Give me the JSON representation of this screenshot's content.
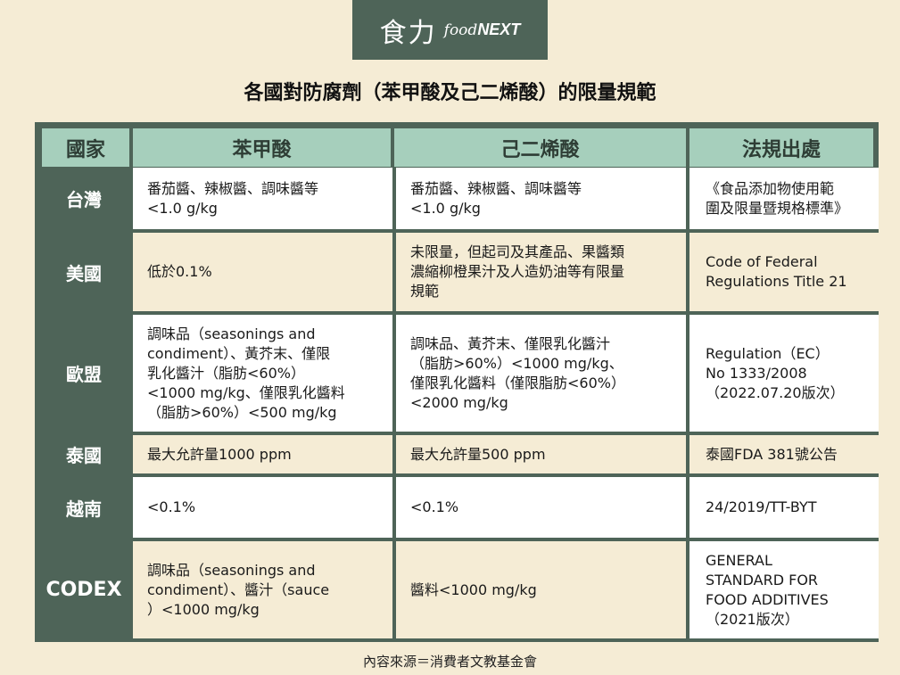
{
  "logo": {
    "zh": "食力",
    "en_prefix": "food",
    "en_suffix": "NEXT"
  },
  "title": "各國對防腐劑（苯甲酸及己二烯酸）的限量規範",
  "headers": {
    "country": "國家",
    "benzoic": "苯甲酸",
    "sorbic": "己二烯酸",
    "law": "法規出處"
  },
  "rows": [
    {
      "country": "台灣",
      "benzoic": "番茄醬、辣椒醬、調味醬等\n<1.0 g/kg",
      "sorbic": "番茄醬、辣椒醬、調味醬等\n<1.0 g/kg",
      "law": "《食品添加物使用範\n圍及限量暨規格標準》"
    },
    {
      "country": "美國",
      "benzoic": "低於0.1%",
      "sorbic": "未限量，但起司及其產品、果醬類\n濃縮柳橙果汁及人造奶油等有限量\n規範",
      "law": "Code of Federal\nRegulations Title 21"
    },
    {
      "country": "歐盟",
      "benzoic": "調味品（seasonings and\ncondiment）、黃芥末、僅限\n乳化醬汁（脂肪<60%）\n<1000 mg/kg、僅限乳化醬料\n（脂肪>60%）<500 mg/kg",
      "sorbic": "調味品、黃芥末、僅限乳化醬汁\n（脂肪>60%）<1000 mg/kg、\n僅限乳化醬料（僅限脂肪<60%）\n<2000 mg/kg",
      "law": "Regulation（EC）\nNo 1333/2008\n（2022.07.20版次）"
    },
    {
      "country": "泰國",
      "benzoic": "最大允許量1000 ppm",
      "sorbic": "最大允許量500 ppm",
      "law": "泰國FDA 381號公告"
    },
    {
      "country": "越南",
      "benzoic": "<0.1%",
      "sorbic": "<0.1%",
      "law": "24/2019/TT-BYT"
    },
    {
      "country": "CODEX",
      "benzoic": "調味品（seasonings and\ncondiment）、醬汁（sauce\n）<1000 mg/kg",
      "sorbic": "醬料<1000 mg/kg",
      "law": "GENERAL\nSTANDARD FOR\nFOOD ADDITIVES\n（2021版次）"
    }
  ],
  "source": "內容來源＝消費者文教基金會",
  "colors": {
    "background": "#f5ecd5",
    "dark_green": "#4e6458",
    "header_green": "#a6cfbc"
  }
}
